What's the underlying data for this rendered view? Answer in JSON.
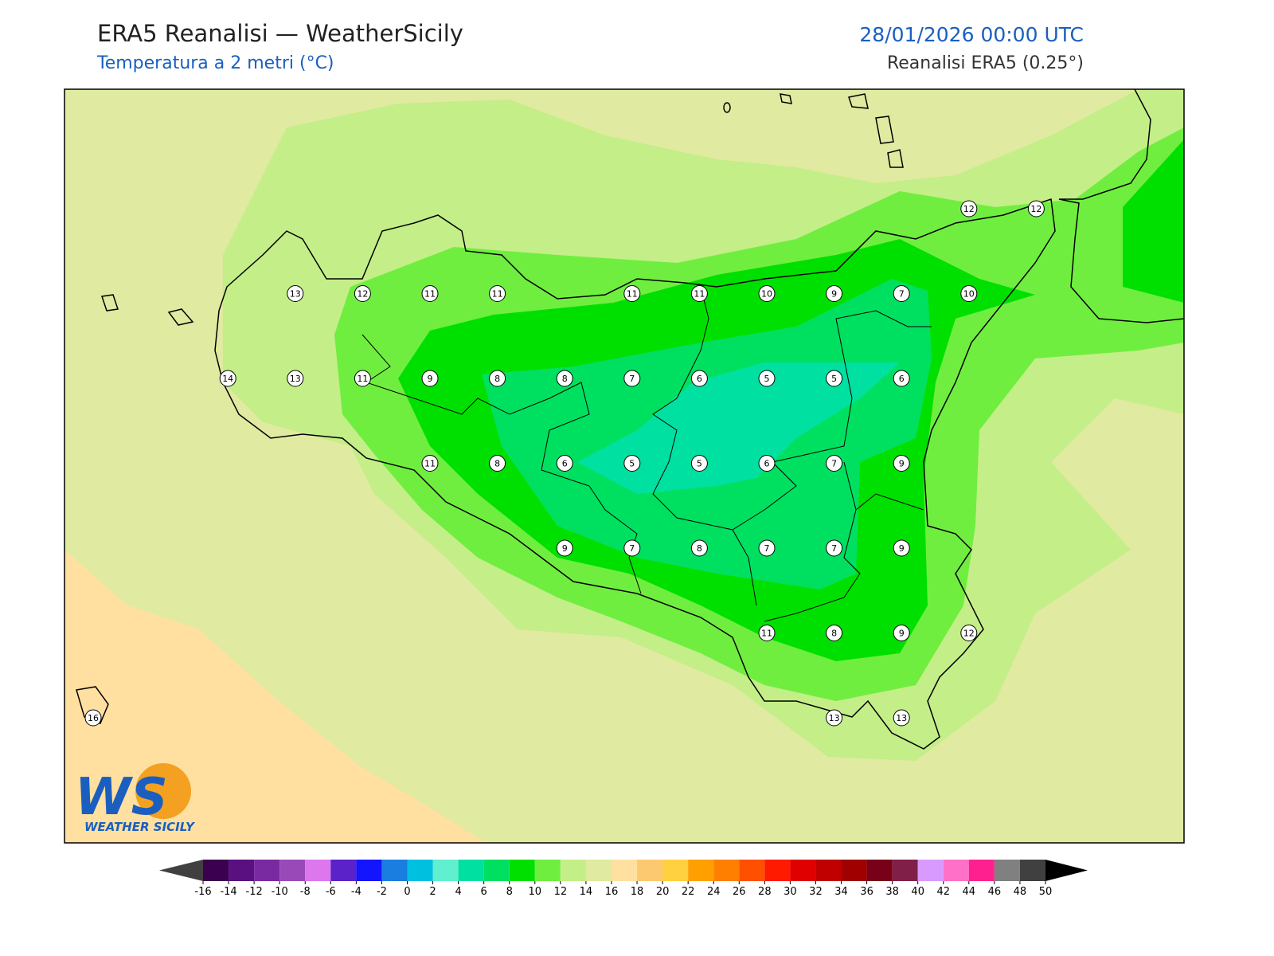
{
  "header": {
    "title": "ERA5 Reanalisi — WeatherSicily",
    "subtitle": "Temperatura a 2 metri (°C)",
    "datetime": "28/01/2026 00:00 UTC",
    "source": "Reanalisi ERA5 (0.25°)"
  },
  "logo": {
    "text": "WS",
    "caption": "WEATHER SICILY"
  },
  "stations": {
    "rows": [
      [
        null,
        null,
        null,
        null,
        null,
        null,
        null,
        null,
        null,
        null,
        null,
        null,
        null,
        12,
        12
      ],
      [
        null,
        null,
        null,
        13,
        12,
        11,
        11,
        null,
        11,
        11,
        10,
        9,
        7,
        10,
        null
      ],
      [
        null,
        null,
        14,
        13,
        11,
        9,
        8,
        8,
        7,
        6,
        5,
        5,
        6,
        null,
        null
      ],
      [
        null,
        null,
        null,
        null,
        null,
        11,
        8,
        6,
        5,
        5,
        6,
        7,
        9,
        null,
        null
      ],
      [
        null,
        null,
        null,
        null,
        null,
        null,
        null,
        9,
        7,
        8,
        7,
        7,
        9,
        null,
        null
      ],
      [
        null,
        null,
        null,
        null,
        null,
        null,
        null,
        null,
        null,
        null,
        11,
        8,
        9,
        12,
        null
      ],
      [
        16,
        null,
        null,
        null,
        null,
        null,
        null,
        null,
        null,
        null,
        null,
        13,
        13,
        null,
        null
      ]
    ]
  },
  "colorbar": {
    "ticks": [
      -16,
      -14,
      -12,
      -10,
      -8,
      -6,
      -4,
      -2,
      0,
      2,
      4,
      6,
      8,
      10,
      12,
      14,
      16,
      18,
      20,
      22,
      24,
      26,
      28,
      30,
      32,
      34,
      36,
      38,
      40,
      42,
      44,
      46,
      48,
      50
    ],
    "colors": [
      "#3c0050",
      "#5a1080",
      "#7a2aa0",
      "#9a4ab8",
      "#dd77ee",
      "#5a22c8",
      "#1414ff",
      "#1a7ee0",
      "#00c0e0",
      "#60f0d0",
      "#00e0a0",
      "#00e060",
      "#00e000",
      "#70ee40",
      "#c4ee88",
      "#e0eaa0",
      "#ffe0a0",
      "#fcc870",
      "#ffd040",
      "#ffa000",
      "#ff8000",
      "#ff5000",
      "#ff1a00",
      "#e00000",
      "#c00000",
      "#a00000",
      "#780018",
      "#802048",
      "#d89aff",
      "#ff70c8",
      "#ff2090",
      "#808080",
      "#404040"
    ],
    "under_color": "#404040",
    "over_color": "#000000"
  }
}
